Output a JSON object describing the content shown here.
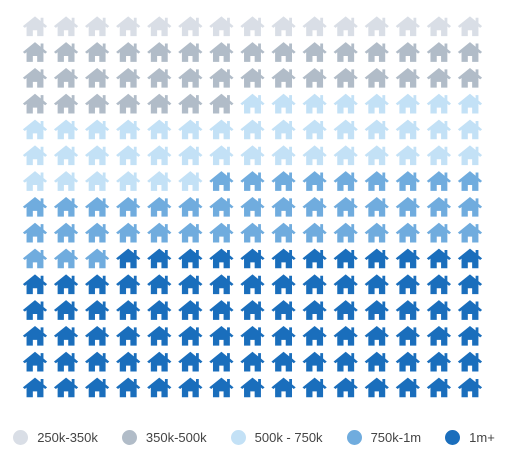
{
  "chart_data": {
    "type": "pictograph",
    "icon": "house-icon",
    "units_per_row": 15,
    "total_units": 225,
    "categories": [
      "250k-350k",
      "350k-500k",
      "500k - 750k",
      "750k-1m",
      "1m+"
    ],
    "values": [
      15,
      37,
      44,
      42,
      87
    ],
    "colors": [
      "#d9dee6",
      "#b1bcc8",
      "#c3e1f6",
      "#70acde",
      "#1a6ebc"
    ],
    "legend_position": "bottom"
  }
}
